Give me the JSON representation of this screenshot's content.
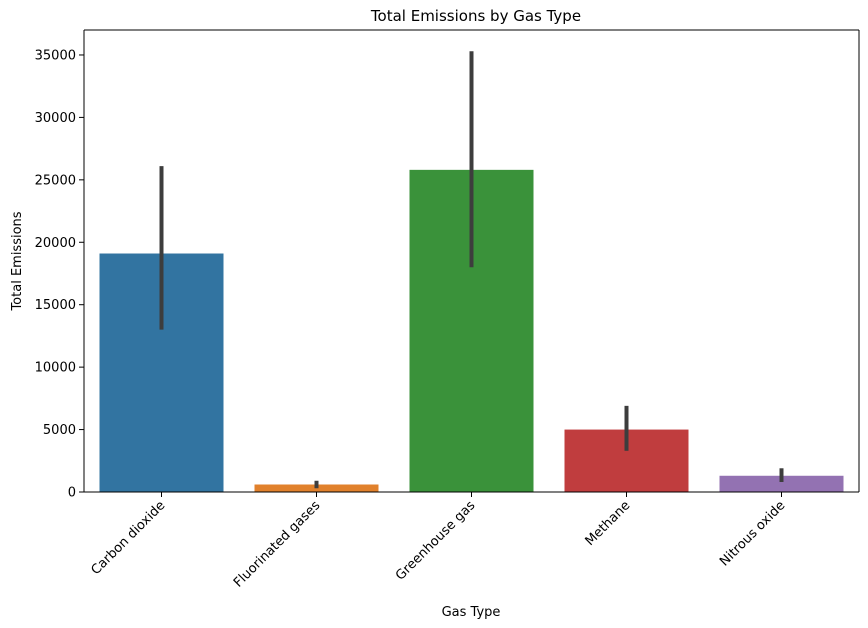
{
  "chart_data": {
    "type": "bar",
    "title": "Total Emissions by Gas Type",
    "xlabel": "Gas Type",
    "ylabel": "Total Emissions",
    "ylim": [
      0,
      37000
    ],
    "yticks": [
      0,
      5000,
      10000,
      15000,
      20000,
      25000,
      30000,
      35000
    ],
    "yticklabels": [
      "0",
      "5000",
      "10000",
      "15000",
      "20000",
      "25000",
      "30000",
      "35000"
    ],
    "categories": [
      "Carbon dioxide",
      "Fluorinated gases",
      "Greenhouse gas",
      "Methane",
      "Nitrous oxide"
    ],
    "values": [
      19100,
      600,
      25800,
      5000,
      1300
    ],
    "error_low": [
      13000,
      300,
      18000,
      3300,
      800
    ],
    "error_high": [
      26100,
      900,
      35300,
      6900,
      1900
    ],
    "colors": [
      "#3274a1",
      "#e1812c",
      "#3a923a",
      "#c03d3e",
      "#9372b2"
    ],
    "grid": false,
    "legend": "none"
  }
}
